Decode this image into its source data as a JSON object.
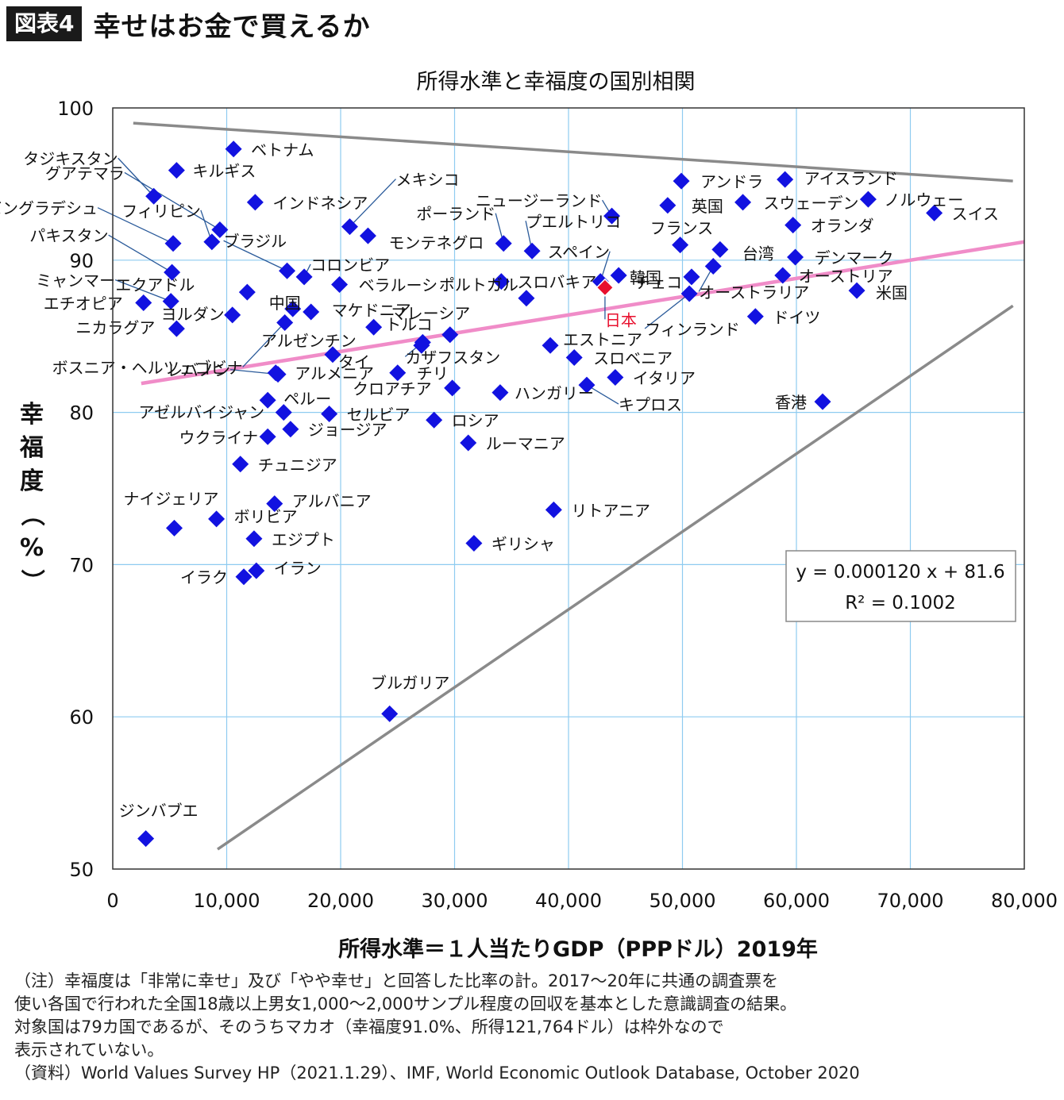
{
  "header": {
    "badge": "図表4",
    "title": "幸せはお金で買えるか"
  },
  "chart_data": {
    "type": "scatter",
    "title": "所得水準と幸福度の国別相関",
    "xlabel": "所得水準＝１人当たりGDP（PPPドル）2019年",
    "ylabel": "幸福度（%）",
    "xlim": [
      0,
      80000
    ],
    "ylim": [
      50,
      100
    ],
    "xticks": [
      0,
      10000,
      20000,
      30000,
      40000,
      50000,
      60000,
      70000,
      80000
    ],
    "xtick_labels": [
      "0",
      "10,000",
      "20,000",
      "30,000",
      "40,000",
      "50,000",
      "60,000",
      "70,000",
      "80,000"
    ],
    "yticks": [
      50,
      60,
      70,
      80,
      90,
      100
    ],
    "ytick_labels": [
      "50",
      "60",
      "70",
      "80",
      "90",
      "100"
    ],
    "grid": true,
    "marker_color": "#1212e0",
    "highlight_color": "#e8102e",
    "trendline_color": "#f08cc8",
    "envelope_color": "#8a8a8a",
    "trendline": {
      "slope": 0.00012,
      "intercept": 81.6,
      "x_range": [
        2500,
        80000
      ]
    },
    "envelope_lines": [
      {
        "x1": 1800,
        "y1": 99.0,
        "x2": 79000,
        "y2": 95.2
      },
      {
        "x1": 9200,
        "y1": 51.3,
        "x2": 79000,
        "y2": 87.0
      }
    ],
    "equation": {
      "line1": "y = 0.000120 x + 81.6",
      "line2": "R² = 0.1002"
    },
    "points": [
      {
        "label": "ベトナム",
        "x": 10600,
        "y": 97.3
      },
      {
        "label": "キルギス",
        "x": 5600,
        "y": 95.9
      },
      {
        "label": "タジキスタン",
        "x": 3600,
        "y": 94.2
      },
      {
        "label": "グアテマラ",
        "x": 9400,
        "y": 92.0
      },
      {
        "label": "フィリピン",
        "x": 8700,
        "y": 91.2
      },
      {
        "label": "バングラデシュ",
        "x": 5300,
        "y": 91.1
      },
      {
        "label": "パキスタン",
        "x": 5200,
        "y": 89.2
      },
      {
        "label": "ミャンマー",
        "x": 5100,
        "y": 87.3
      },
      {
        "label": "エチオピア",
        "x": 2700,
        "y": 87.2
      },
      {
        "label": "ニカラグア",
        "x": 5600,
        "y": 85.5
      },
      {
        "label": "インドネシア",
        "x": 12500,
        "y": 93.8
      },
      {
        "label": "メキシコ",
        "x": 20800,
        "y": 92.2
      },
      {
        "label": "モンテネグロ",
        "x": 22400,
        "y": 91.6
      },
      {
        "label": "ブラジル",
        "x": 15300,
        "y": 89.3
      },
      {
        "label": "コロンビア",
        "x": 16800,
        "y": 88.9
      },
      {
        "label": "エクアドル",
        "x": 11800,
        "y": 87.9
      },
      {
        "label": "ベラルーシ",
        "x": 19900,
        "y": 88.4
      },
      {
        "label": "中国",
        "x": 15800,
        "y": 86.8
      },
      {
        "label": "ヨルダン",
        "x": 10500,
        "y": 86.4
      },
      {
        "label": "マケドニア",
        "x": 17400,
        "y": 86.6
      },
      {
        "label": "ボスニア・ヘルツェゴビナ",
        "x": 15100,
        "y": 85.9
      },
      {
        "label": "マレーシア",
        "x": 22900,
        "y": 85.6
      },
      {
        "label": "アルゼンチン",
        "x": 19300,
        "y": 83.8
      },
      {
        "label": "タイ",
        "x": 27100,
        "y": 84.4
      },
      {
        "label": "レバノン",
        "x": 14500,
        "y": 82.5
      },
      {
        "label": "アルメニア",
        "x": 14300,
        "y": 82.6
      },
      {
        "label": "チリ",
        "x": 25000,
        "y": 82.6
      },
      {
        "label": "クロアチア",
        "x": 29800,
        "y": 81.6
      },
      {
        "label": "ハンガリー",
        "x": 34000,
        "y": 81.3
      },
      {
        "label": "アゼルバイジャン",
        "x": 13600,
        "y": 80.8
      },
      {
        "label": "ペルー",
        "x": 15000,
        "y": 80.0
      },
      {
        "label": "セルビア",
        "x": 19000,
        "y": 79.9
      },
      {
        "label": "ロシア",
        "x": 28200,
        "y": 79.5
      },
      {
        "label": "ジョージア",
        "x": 15600,
        "y": 78.9
      },
      {
        "label": "ウクライナ",
        "x": 13600,
        "y": 78.4
      },
      {
        "label": "ルーマニア",
        "x": 31200,
        "y": 78.0
      },
      {
        "label": "チュニジア",
        "x": 11200,
        "y": 76.6
      },
      {
        "label": "アルバニア",
        "x": 14200,
        "y": 74.0
      },
      {
        "label": "ナイジェリア",
        "x": 5400,
        "y": 72.4
      },
      {
        "label": "ボリビア",
        "x": 9100,
        "y": 73.0
      },
      {
        "label": "エジプト",
        "x": 12400,
        "y": 71.7
      },
      {
        "label": "リトアニア",
        "x": 38700,
        "y": 73.6
      },
      {
        "label": "ギリシャ",
        "x": 31700,
        "y": 71.4
      },
      {
        "label": "イラン",
        "x": 12600,
        "y": 69.6
      },
      {
        "label": "イラク",
        "x": 11500,
        "y": 69.2
      },
      {
        "label": "ブルガリア",
        "x": 24300,
        "y": 60.2
      },
      {
        "label": "ジンバブエ",
        "x": 2900,
        "y": 52.0
      },
      {
        "label": "ポーランド",
        "x": 34300,
        "y": 91.1
      },
      {
        "label": "プエルトリコ",
        "x": 36800,
        "y": 90.6
      },
      {
        "label": "ニュージーランド",
        "x": 43800,
        "y": 92.9
      },
      {
        "label": "スペイン",
        "x": 42800,
        "y": 88.6
      },
      {
        "label": "スロバキア",
        "x": 34100,
        "y": 88.6
      },
      {
        "label": "ポルトガル",
        "x": 36300,
        "y": 87.5
      },
      {
        "label": "チェコ",
        "x": 44400,
        "y": 89.0
      },
      {
        "label": "日本",
        "x": 43200,
        "y": 88.2
      },
      {
        "label": "トルコ",
        "x": 29600,
        "y": 85.1
      },
      {
        "label": "カザフスタン",
        "x": 27200,
        "y": 84.6
      },
      {
        "label": "エストニア",
        "x": 38400,
        "y": 84.4
      },
      {
        "label": "スロベニア",
        "x": 40500,
        "y": 83.6
      },
      {
        "label": "イタリア",
        "x": 44100,
        "y": 82.3
      },
      {
        "label": "キプロス",
        "x": 41600,
        "y": 81.8
      },
      {
        "label": "アンドラ",
        "x": 49900,
        "y": 95.2
      },
      {
        "label": "英国",
        "x": 48700,
        "y": 93.6
      },
      {
        "label": "フランス",
        "x": 49800,
        "y": 91.0
      },
      {
        "label": "韓国",
        "x": 50800,
        "y": 88.9
      },
      {
        "label": "フィンランド",
        "x": 50600,
        "y": 87.8
      },
      {
        "label": "台湾",
        "x": 53300,
        "y": 90.7
      },
      {
        "label": "オーストラリア",
        "x": 52700,
        "y": 89.6
      },
      {
        "label": "アイスランド",
        "x": 59000,
        "y": 95.3
      },
      {
        "label": "スウェーデン",
        "x": 55300,
        "y": 93.8
      },
      {
        "label": "ノルウェー",
        "x": 66300,
        "y": 94.0
      },
      {
        "label": "スイス",
        "x": 72100,
        "y": 93.1
      },
      {
        "label": "オランダ",
        "x": 59700,
        "y": 92.3
      },
      {
        "label": "デンマーク",
        "x": 59900,
        "y": 90.2
      },
      {
        "label": "オーストリア",
        "x": 58800,
        "y": 89.0
      },
      {
        "label": "米国",
        "x": 65300,
        "y": 88.0
      },
      {
        "label": "ドイツ",
        "x": 56400,
        "y": 86.3
      },
      {
        "label": "香港",
        "x": 62300,
        "y": 80.7
      }
    ]
  },
  "notes": [
    "（注）幸福度は「非常に幸せ」及び「やや幸せ」と回答した比率の計。2017～20年に共通の調査票を",
    "使い各国で行われた全国18歳以上男女1,000～2,000サンプル程度の回収を基本とした意識調査の結果。",
    "対象国は79カ国であるが、そのうちマカオ（幸福度91.0%、所得121,764ドル）は枠外なので",
    "表示されていない。",
    "（資料）World Values Survey HP（2021.1.29）、IMF, World Economic Outlook Database, October 2020"
  ]
}
